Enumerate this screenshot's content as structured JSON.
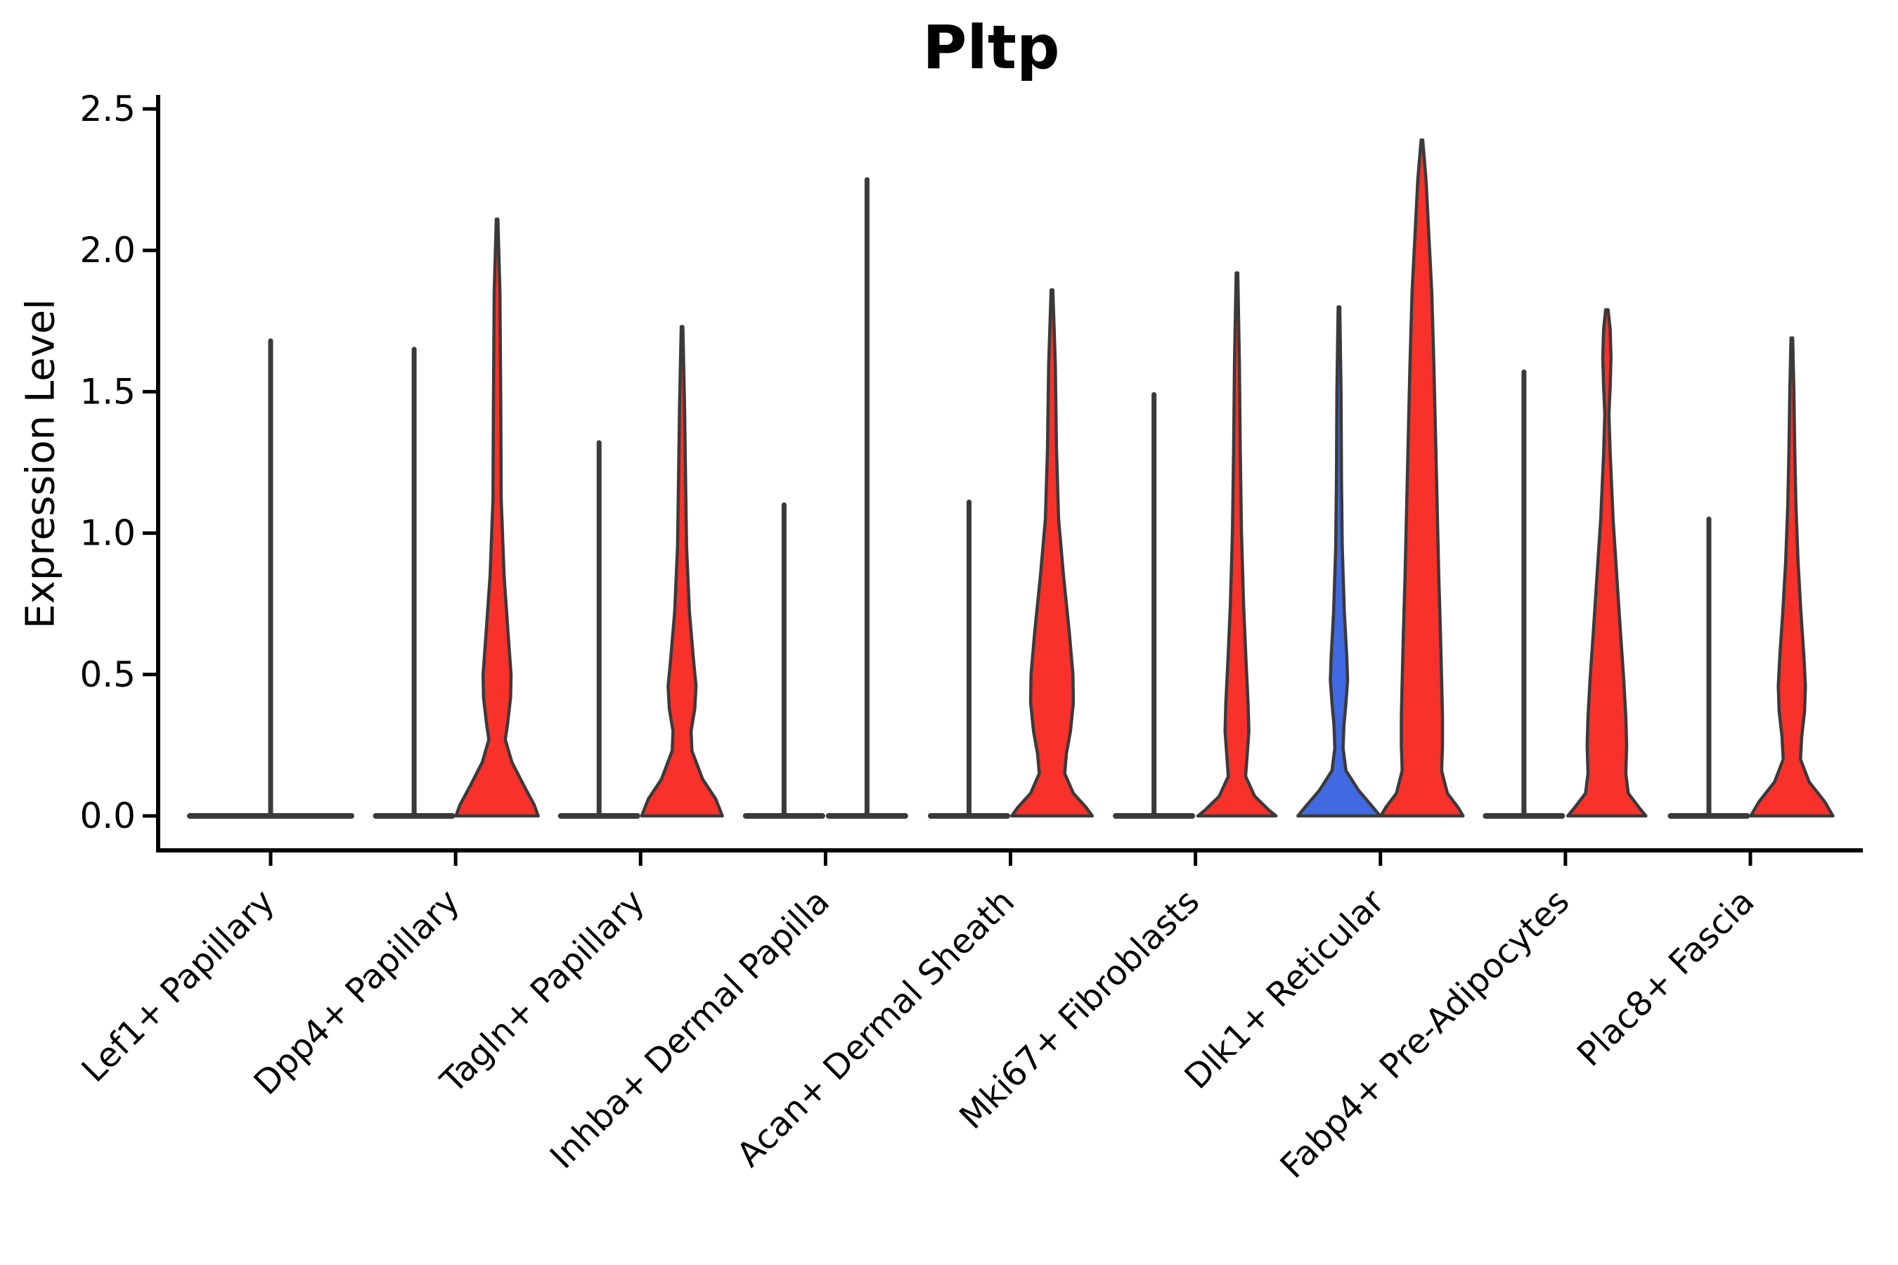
{
  "chart_data": {
    "type": "violin",
    "title": "Pltp",
    "ylabel": "Expression Level",
    "xlabel": "",
    "yticks": [
      0.0,
      0.5,
      1.0,
      1.5,
      2.0,
      2.5
    ],
    "ylim": [
      -0.13,
      2.55
    ],
    "grid": false,
    "legend": "none",
    "colors": {
      "red": "#F8312B",
      "blue": "#4169E1",
      "outline": "#3A3A3A",
      "axis": "#000000",
      "background": "#FFFFFF"
    },
    "categories": [
      {
        "label": "Lef1+ Papillary",
        "violins": [
          {
            "pos": "center",
            "style": "spike",
            "fill": "none",
            "max": 1.68
          }
        ]
      },
      {
        "label": "Dpp4+ Papillary",
        "violins": [
          {
            "pos": "left",
            "style": "spike",
            "fill": "none",
            "max": 1.65
          },
          {
            "pos": "right",
            "style": "violin",
            "fill": "red",
            "max": 2.11,
            "profile": [
              [
                2.11,
                0.02
              ],
              [
                1.85,
                0.07
              ],
              [
                1.45,
                0.09
              ],
              [
                1.12,
                0.1
              ],
              [
                0.85,
                0.17
              ],
              [
                0.62,
                0.28
              ],
              [
                0.5,
                0.34
              ],
              [
                0.42,
                0.33
              ],
              [
                0.33,
                0.26
              ],
              [
                0.27,
                0.2
              ],
              [
                0.19,
                0.36
              ],
              [
                0.11,
                0.64
              ],
              [
                0.04,
                0.9
              ],
              [
                0.0,
                1.0
              ]
            ]
          }
        ]
      },
      {
        "label": "Tagln+ Papillary",
        "violins": [
          {
            "pos": "left",
            "style": "spike",
            "fill": "none",
            "max": 1.32
          },
          {
            "pos": "right",
            "style": "violin",
            "fill": "red",
            "max": 1.73,
            "profile": [
              [
                1.73,
                0.02
              ],
              [
                1.45,
                0.06
              ],
              [
                1.15,
                0.09
              ],
              [
                0.95,
                0.11
              ],
              [
                0.72,
                0.18
              ],
              [
                0.55,
                0.28
              ],
              [
                0.46,
                0.34
              ],
              [
                0.38,
                0.31
              ],
              [
                0.3,
                0.22
              ],
              [
                0.23,
                0.24
              ],
              [
                0.13,
                0.5
              ],
              [
                0.06,
                0.82
              ],
              [
                0.0,
                0.98
              ]
            ]
          }
        ]
      },
      {
        "label": "Inhba+ Dermal Papilla",
        "violins": [
          {
            "pos": "left",
            "style": "spike",
            "fill": "none",
            "max": 1.1
          },
          {
            "pos": "right",
            "style": "spike",
            "fill": "none",
            "max": 2.25
          }
        ]
      },
      {
        "label": "Acan+ Dermal Sheath",
        "violins": [
          {
            "pos": "left",
            "style": "spike",
            "fill": "none",
            "max": 1.11
          },
          {
            "pos": "right",
            "style": "violin",
            "fill": "red",
            "max": 1.86,
            "profile": [
              [
                1.86,
                0.02
              ],
              [
                1.6,
                0.08
              ],
              [
                1.3,
                0.11
              ],
              [
                1.05,
                0.16
              ],
              [
                0.85,
                0.28
              ],
              [
                0.65,
                0.42
              ],
              [
                0.5,
                0.51
              ],
              [
                0.4,
                0.52
              ],
              [
                0.3,
                0.45
              ],
              [
                0.22,
                0.35
              ],
              [
                0.15,
                0.31
              ],
              [
                0.08,
                0.52
              ],
              [
                0.03,
                0.83
              ],
              [
                0.0,
                0.98
              ]
            ]
          }
        ]
      },
      {
        "label": "Mki67+ Fibroblasts",
        "violins": [
          {
            "pos": "left",
            "style": "spike",
            "fill": "none",
            "max": 1.49
          },
          {
            "pos": "right",
            "style": "violin",
            "fill": "red",
            "max": 1.92,
            "profile": [
              [
                1.92,
                0.02
              ],
              [
                1.6,
                0.06
              ],
              [
                1.3,
                0.08
              ],
              [
                1.0,
                0.11
              ],
              [
                0.75,
                0.16
              ],
              [
                0.55,
                0.22
              ],
              [
                0.4,
                0.27
              ],
              [
                0.3,
                0.29
              ],
              [
                0.22,
                0.25
              ],
              [
                0.14,
                0.21
              ],
              [
                0.07,
                0.43
              ],
              [
                0.02,
                0.78
              ],
              [
                0.0,
                0.95
              ]
            ]
          }
        ]
      },
      {
        "label": "Dlk1+ Reticular",
        "violins": [
          {
            "pos": "left",
            "style": "violin",
            "fill": "blue",
            "max": 1.8,
            "profile": [
              [
                1.8,
                0.02
              ],
              [
                1.5,
                0.05
              ],
              [
                1.2,
                0.06
              ],
              [
                0.95,
                0.08
              ],
              [
                0.72,
                0.13
              ],
              [
                0.56,
                0.19
              ],
              [
                0.48,
                0.21
              ],
              [
                0.4,
                0.17
              ],
              [
                0.32,
                0.12
              ],
              [
                0.24,
                0.1
              ],
              [
                0.16,
                0.17
              ],
              [
                0.09,
                0.48
              ],
              [
                0.03,
                0.83
              ],
              [
                0.0,
                1.0
              ]
            ]
          },
          {
            "pos": "right",
            "style": "violin",
            "fill": "red",
            "max": 2.39,
            "profile": [
              [
                2.39,
                0.02
              ],
              [
                2.25,
                0.1
              ],
              [
                2.05,
                0.17
              ],
              [
                1.85,
                0.24
              ],
              [
                1.6,
                0.29
              ],
              [
                1.35,
                0.33
              ],
              [
                1.1,
                0.37
              ],
              [
                0.85,
                0.41
              ],
              [
                0.65,
                0.45
              ],
              [
                0.48,
                0.48
              ],
              [
                0.35,
                0.5
              ],
              [
                0.25,
                0.5
              ],
              [
                0.16,
                0.48
              ],
              [
                0.08,
                0.62
              ],
              [
                0.03,
                0.88
              ],
              [
                0.0,
                1.0
              ]
            ]
          }
        ]
      },
      {
        "label": "Fabp4+ Pre-Adipocytes",
        "violins": [
          {
            "pos": "left",
            "style": "spike",
            "fill": "none",
            "max": 1.57
          },
          {
            "pos": "right",
            "style": "violin",
            "fill": "red",
            "max": 1.79,
            "profile": [
              [
                1.79,
                0.03
              ],
              [
                1.72,
                0.08
              ],
              [
                1.62,
                0.1
              ],
              [
                1.52,
                0.08
              ],
              [
                1.42,
                0.05
              ],
              [
                1.28,
                0.08
              ],
              [
                1.05,
                0.15
              ],
              [
                0.85,
                0.24
              ],
              [
                0.65,
                0.33
              ],
              [
                0.48,
                0.41
              ],
              [
                0.35,
                0.46
              ],
              [
                0.25,
                0.48
              ],
              [
                0.15,
                0.46
              ],
              [
                0.08,
                0.52
              ],
              [
                0.03,
                0.78
              ],
              [
                0.0,
                0.95
              ]
            ]
          }
        ]
      },
      {
        "label": "Plac8+ Fascia",
        "violins": [
          {
            "pos": "left",
            "style": "spike",
            "fill": "none",
            "max": 1.05
          },
          {
            "pos": "right",
            "style": "violin",
            "fill": "red",
            "max": 1.69,
            "profile": [
              [
                1.69,
                0.02
              ],
              [
                1.5,
                0.05
              ],
              [
                1.3,
                0.07
              ],
              [
                1.1,
                0.1
              ],
              [
                0.9,
                0.15
              ],
              [
                0.72,
                0.22
              ],
              [
                0.57,
                0.29
              ],
              [
                0.46,
                0.33
              ],
              [
                0.37,
                0.31
              ],
              [
                0.28,
                0.24
              ],
              [
                0.2,
                0.21
              ],
              [
                0.12,
                0.42
              ],
              [
                0.05,
                0.8
              ],
              [
                0.0,
                1.0
              ]
            ]
          }
        ]
      }
    ]
  }
}
